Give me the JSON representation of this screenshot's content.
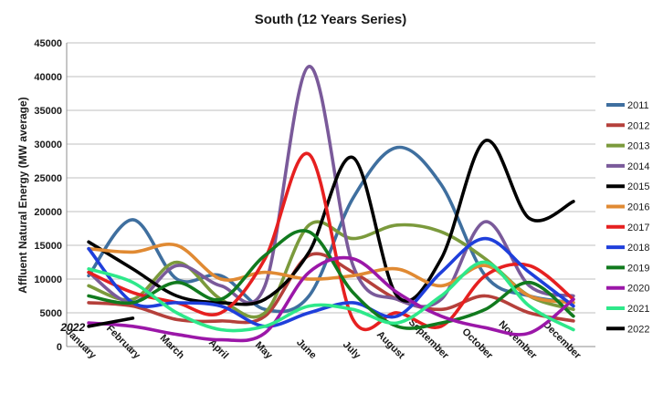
{
  "chart_data": {
    "type": "line",
    "title": "South (12 Years Series)",
    "xlabel": "",
    "ylabel": "Affluent Natural Energy (MW average)",
    "ylim": [
      0,
      45000
    ],
    "yticks": [
      0,
      5000,
      10000,
      15000,
      20000,
      25000,
      30000,
      35000,
      40000,
      45000
    ],
    "grid": "horizontal",
    "legend_position": "right",
    "categories": [
      "January",
      "February",
      "March",
      "April",
      "May",
      "June",
      "July",
      "August",
      "September",
      "October",
      "November",
      "December"
    ],
    "series": [
      {
        "name": "2011",
        "color": "#3f6f9f",
        "values": [
          10500,
          18800,
          10000,
          10500,
          5500,
          7500,
          22000,
          29500,
          24000,
          10500,
          7500,
          6500
        ]
      },
      {
        "name": "2012",
        "color": "#b5403b",
        "values": [
          6500,
          6000,
          4000,
          3800,
          4500,
          13500,
          11000,
          7000,
          5500,
          7500,
          5000,
          3800
        ]
      },
      {
        "name": "2013",
        "color": "#7b9a3c",
        "values": [
          9000,
          7000,
          12500,
          7000,
          5000,
          18000,
          16000,
          18000,
          17000,
          13000,
          7500,
          5500
        ]
      },
      {
        "name": "2014",
        "color": "#7a5a9a",
        "values": [
          11000,
          6500,
          12000,
          9000,
          9000,
          41500,
          12000,
          7000,
          7000,
          18500,
          9000,
          7500
        ]
      },
      {
        "name": "2015",
        "color": "#000000",
        "values": [
          15500,
          11500,
          7500,
          6500,
          7000,
          14000,
          28000,
          7500,
          13000,
          30500,
          19000,
          21500
        ]
      },
      {
        "name": "2016",
        "color": "#e08a33",
        "values": [
          14500,
          14000,
          15000,
          10000,
          11000,
          10000,
          10500,
          11500,
          9000,
          12000,
          7500,
          6500
        ]
      },
      {
        "name": "2017",
        "color": "#e62020",
        "values": [
          11000,
          8000,
          6500,
          5000,
          13000,
          28500,
          4000,
          5000,
          3000,
          10500,
          12000,
          7000
        ]
      },
      {
        "name": "2018",
        "color": "#1f3fdb",
        "values": [
          14500,
          6500,
          6500,
          6000,
          3000,
          5000,
          6500,
          4500,
          11000,
          16000,
          11000,
          6000
        ]
      },
      {
        "name": "2019",
        "color": "#117a1e",
        "values": [
          7500,
          6500,
          9500,
          7000,
          13500,
          17000,
          8000,
          3000,
          3500,
          5500,
          9500,
          4500
        ]
      },
      {
        "name": "2020",
        "color": "#9b17a8",
        "values": [
          3500,
          3000,
          1800,
          1000,
          2000,
          11000,
          13000,
          8000,
          4500,
          2800,
          2000,
          7000
        ]
      },
      {
        "name": "2021",
        "color": "#2ee88a",
        "values": [
          11500,
          9500,
          5000,
          2500,
          3000,
          6000,
          5500,
          3500,
          7500,
          12500,
          6000,
          2500
        ]
      },
      {
        "name": "2022",
        "color": "#000000",
        "values": [
          3000,
          4200,
          null,
          null,
          null,
          null,
          null,
          null,
          null,
          null,
          null,
          null
        ]
      }
    ],
    "annotations": [
      {
        "text": "2022",
        "series": "2022",
        "at": "January"
      }
    ]
  }
}
